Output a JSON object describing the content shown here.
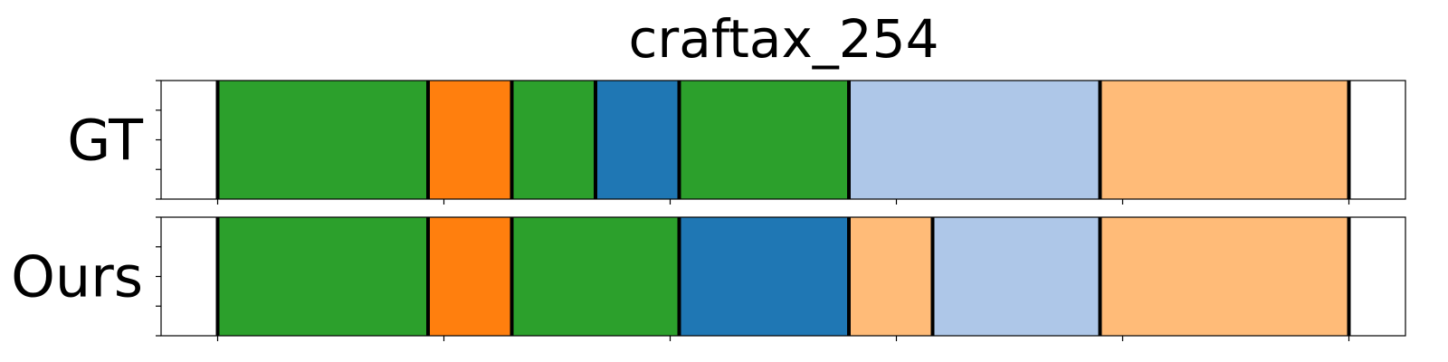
{
  "chart_data": {
    "type": "bar",
    "title": "craftax_254",
    "xlim": [
      0,
      550
    ],
    "rows": [
      {
        "label": "GT",
        "segments": [
          {
            "start": 25,
            "end": 118,
            "color": "#2ca02c"
          },
          {
            "start": 118,
            "end": 155,
            "color": "#ff7f0e"
          },
          {
            "start": 155,
            "end": 192,
            "color": "#2ca02c"
          },
          {
            "start": 192,
            "end": 229,
            "color": "#1f77b4"
          },
          {
            "start": 229,
            "end": 304,
            "color": "#2ca02c"
          },
          {
            "start": 304,
            "end": 415,
            "color": "#aec7e8"
          },
          {
            "start": 415,
            "end": 525,
            "color": "#ffbb78"
          }
        ]
      },
      {
        "label": "Ours",
        "segments": [
          {
            "start": 25,
            "end": 118,
            "color": "#2ca02c"
          },
          {
            "start": 118,
            "end": 155,
            "color": "#ff7f0e"
          },
          {
            "start": 155,
            "end": 229,
            "color": "#2ca02c"
          },
          {
            "start": 229,
            "end": 304,
            "color": "#1f77b4"
          },
          {
            "start": 304,
            "end": 341,
            "color": "#ffbb78"
          },
          {
            "start": 341,
            "end": 415,
            "color": "#aec7e8"
          },
          {
            "start": 415,
            "end": 525,
            "color": "#ffbb78"
          }
        ]
      }
    ],
    "xticks": [
      25,
      125,
      225,
      325,
      425,
      525
    ],
    "grid": false,
    "xlabel": "",
    "ylabel": ""
  }
}
